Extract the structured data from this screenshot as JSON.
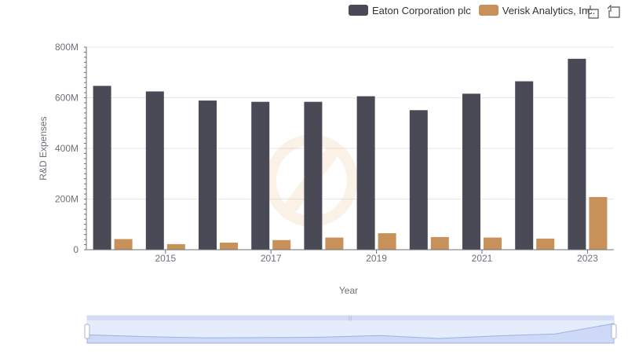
{
  "legend": {
    "items": [
      {
        "label": "Eaton Corporation plc",
        "color": "#4a4a56"
      },
      {
        "label": "Verisk Analytics, Inc.",
        "color": "#c8915a"
      }
    ]
  },
  "toolbox": {
    "icons": [
      "zoom-icon",
      "restore-icon"
    ]
  },
  "chart_data": {
    "type": "bar",
    "xlabel": "Year",
    "ylabel": "R&D Expenses",
    "categories": [
      "2014",
      "2015",
      "2016",
      "2017",
      "2018",
      "2019",
      "2020",
      "2021",
      "2022",
      "2023"
    ],
    "x_tick_labels": [
      "2015",
      "2017",
      "2019",
      "2021",
      "2023"
    ],
    "y_tick_labels": [
      "0",
      "200M",
      "400M",
      "600M",
      "800M"
    ],
    "ylim": [
      0,
      800000000
    ],
    "series": [
      {
        "name": "Eaton Corporation plc",
        "color": "#4a4a56",
        "values": [
          647000000,
          625000000,
          589000000,
          584000000,
          584000000,
          606000000,
          551000000,
          616000000,
          665000000,
          754000000
        ]
      },
      {
        "name": "Verisk Analytics, Inc.",
        "color": "#c8915a",
        "values": [
          42000000,
          22000000,
          28000000,
          38000000,
          48000000,
          65000000,
          50000000,
          48000000,
          44000000,
          208000000
        ]
      }
    ],
    "grid": true,
    "legend_position": "top-right"
  }
}
